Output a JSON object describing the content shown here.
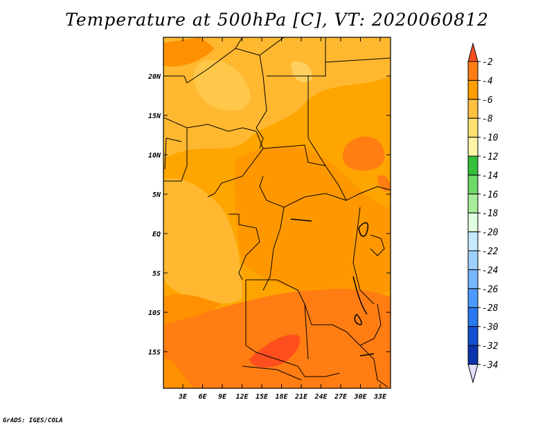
{
  "title": "Temperature at 500hPa [C], VT: 2020060812",
  "footer": "GrADS: IGES/COLA",
  "map": {
    "lat_ticks": [
      "20N",
      "15N",
      "10N",
      "5N",
      "EQ",
      "5S",
      "10S",
      "15S"
    ],
    "lon_ticks": [
      "3E",
      "6E",
      "9E",
      "12E",
      "15E",
      "18E",
      "21E",
      "24E",
      "27E",
      "30E",
      "33E"
    ]
  },
  "colorbar": {
    "labels": [
      "-2",
      "-4",
      "-6",
      "-8",
      "-10",
      "-12",
      "-14",
      "-16",
      "-18",
      "-20",
      "-22",
      "-24",
      "-26",
      "-28",
      "-30",
      "-32",
      "-34"
    ],
    "colors": [
      "#ff4e1e",
      "#ff7d12",
      "#ff9e00",
      "#ffc040",
      "#ffe070",
      "#fff4a8",
      "#34c03a",
      "#6ed86a",
      "#a6ee9a",
      "#e0ffe0",
      "#c6eaff",
      "#9dd2ff",
      "#75b8ff",
      "#4c9aff",
      "#2878f0",
      "#1450d2",
      "#0a32aa",
      "#0a1478",
      "#e0e0ff"
    ]
  }
}
